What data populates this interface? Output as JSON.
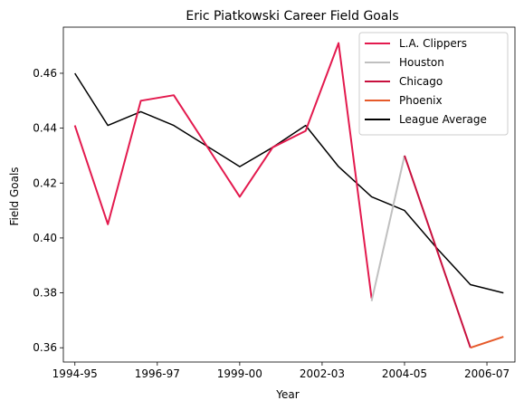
{
  "chart_data": {
    "type": "line",
    "title": "Eric Piatkowski Career Field Goals",
    "xlabel": "Year",
    "ylabel": "Field Goals",
    "x_tick_labels": [
      {
        "x": 0,
        "label": "1994-95"
      },
      {
        "x": 2.5,
        "label": "1996-97"
      },
      {
        "x": 5,
        "label": "1999-00"
      },
      {
        "x": 7.5,
        "label": "2002-03"
      },
      {
        "x": 10,
        "label": "2004-05"
      },
      {
        "x": 12.5,
        "label": "2006-07"
      }
    ],
    "y_ticks": [
      0.36,
      0.38,
      0.4,
      0.42,
      0.44,
      0.46
    ],
    "y_tick_labels": [
      "0.36",
      "0.38",
      "0.40",
      "0.42",
      "0.44",
      "0.46"
    ],
    "xlim": [
      -0.35,
      13.35
    ],
    "ylim": [
      0.3548,
      0.4768
    ],
    "grid": false,
    "legend_position": "top-right",
    "series": [
      {
        "name": "L.A. Clippers",
        "color": "#e31a4e",
        "points": [
          [
            0,
            0.441
          ],
          [
            1,
            0.405
          ],
          [
            2,
            0.45
          ],
          [
            3,
            0.452
          ],
          [
            5,
            0.415
          ],
          [
            6,
            0.433
          ],
          [
            7,
            0.439
          ],
          [
            8,
            0.471
          ],
          [
            9,
            0.378
          ]
        ]
      },
      {
        "name": "Houston",
        "color": "#c0c0c0",
        "points": [
          [
            9,
            0.377
          ],
          [
            10,
            0.43
          ]
        ]
      },
      {
        "name": "Chicago",
        "color": "#c8103e",
        "points": [
          [
            10,
            0.43
          ],
          [
            12,
            0.36
          ]
        ]
      },
      {
        "name": "Phoenix",
        "color": "#e65a2a",
        "points": [
          [
            12,
            0.36
          ],
          [
            13,
            0.364
          ]
        ]
      },
      {
        "name": "League Average",
        "color": "#000000",
        "points": [
          [
            0,
            0.46
          ],
          [
            1,
            0.441
          ],
          [
            2,
            0.446
          ],
          [
            3,
            0.441
          ],
          [
            5,
            0.426
          ],
          [
            6,
            0.433
          ],
          [
            7,
            0.441
          ],
          [
            8,
            0.426
          ],
          [
            9,
            0.415
          ],
          [
            10,
            0.41
          ],
          [
            11,
            0.396
          ],
          [
            12,
            0.383
          ],
          [
            13,
            0.38
          ]
        ]
      }
    ]
  }
}
